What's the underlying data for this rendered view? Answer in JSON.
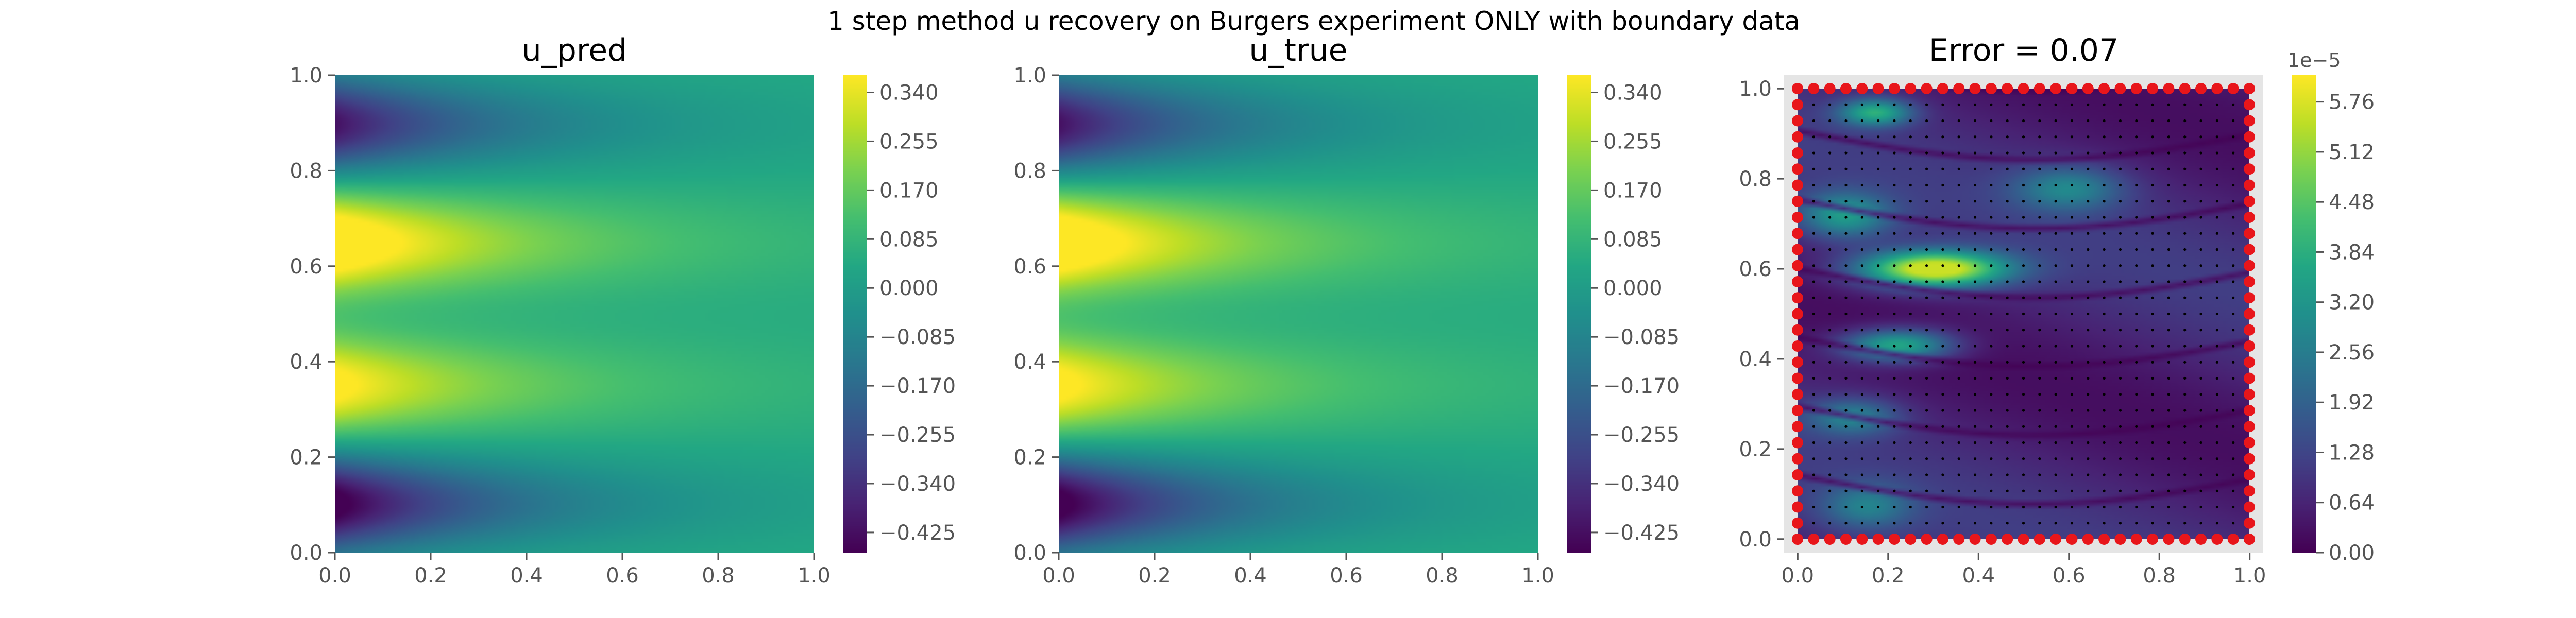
{
  "figure": {
    "suptitle": "1 step method u recovery on Burgers experiment ONLY with boundary data"
  },
  "chart_data": [
    {
      "type": "heatmap",
      "title": "u_pred",
      "xlim": [
        0,
        1
      ],
      "ylim": [
        0,
        1
      ],
      "xticks": [
        "0.0",
        "0.2",
        "0.4",
        "0.6",
        "0.8",
        "1.0"
      ],
      "yticks": [
        "0.0",
        "0.2",
        "0.4",
        "0.6",
        "0.8",
        "1.0"
      ],
      "colormap": "viridis",
      "colorbar": {
        "range": [
          -0.46,
          0.37
        ],
        "ticks": [
          "−0.425",
          "−0.340",
          "−0.255",
          "−0.170",
          "−0.085",
          "0.000",
          "0.085",
          "0.170",
          "0.255",
          "0.340"
        ],
        "tick_values": [
          -0.425,
          -0.34,
          -0.255,
          -0.17,
          -0.085,
          0.0,
          0.085,
          0.17,
          0.255,
          0.34
        ]
      },
      "field_description": "u(x,y) strongest at x=0: minima near y=0.1 and y=0.9, maxima near y=0.35 and y=0.65, decaying toward uniform ~0.05 by x=1"
    },
    {
      "type": "heatmap",
      "title": "u_true",
      "xlim": [
        0,
        1
      ],
      "ylim": [
        0,
        1
      ],
      "xticks": [
        "0.0",
        "0.2",
        "0.4",
        "0.6",
        "0.8",
        "1.0"
      ],
      "yticks": [
        "0.0",
        "0.2",
        "0.4",
        "0.6",
        "0.8",
        "1.0"
      ],
      "colormap": "viridis",
      "colorbar": {
        "range": [
          -0.46,
          0.37
        ],
        "ticks": [
          "−0.425",
          "−0.340",
          "−0.255",
          "−0.170",
          "−0.085",
          "0.000",
          "0.085",
          "0.170",
          "0.255",
          "0.340"
        ],
        "tick_values": [
          -0.425,
          -0.34,
          -0.255,
          -0.17,
          -0.085,
          0.0,
          0.085,
          0.17,
          0.255,
          0.34
        ]
      }
    },
    {
      "type": "heatmap",
      "title": "Error = 0.07",
      "xlim": [
        -0.03,
        1.03
      ],
      "ylim": [
        -0.03,
        1.03
      ],
      "xticks": [
        "0.0",
        "0.2",
        "0.4",
        "0.6",
        "0.8",
        "1.0"
      ],
      "yticks": [
        "0.0",
        "0.2",
        "0.4",
        "0.6",
        "0.8",
        "1.0"
      ],
      "colormap": "viridis",
      "colorbar": {
        "range": [
          0,
          6.1
        ],
        "offset_label": "1e−5",
        "ticks": [
          "0.00",
          "0.64",
          "1.28",
          "1.92",
          "2.56",
          "3.20",
          "3.84",
          "4.48",
          "5.12",
          "5.76"
        ],
        "tick_values": [
          0,
          0.64,
          1.28,
          1.92,
          2.56,
          3.2,
          3.84,
          4.48,
          5.12,
          5.76
        ]
      },
      "overlays": {
        "boundary_points": {
          "color": "#e8161b",
          "per_side": 28
        },
        "interior_grid": {
          "color": "#000000",
          "nx": 28,
          "ny": 28
        }
      }
    }
  ]
}
